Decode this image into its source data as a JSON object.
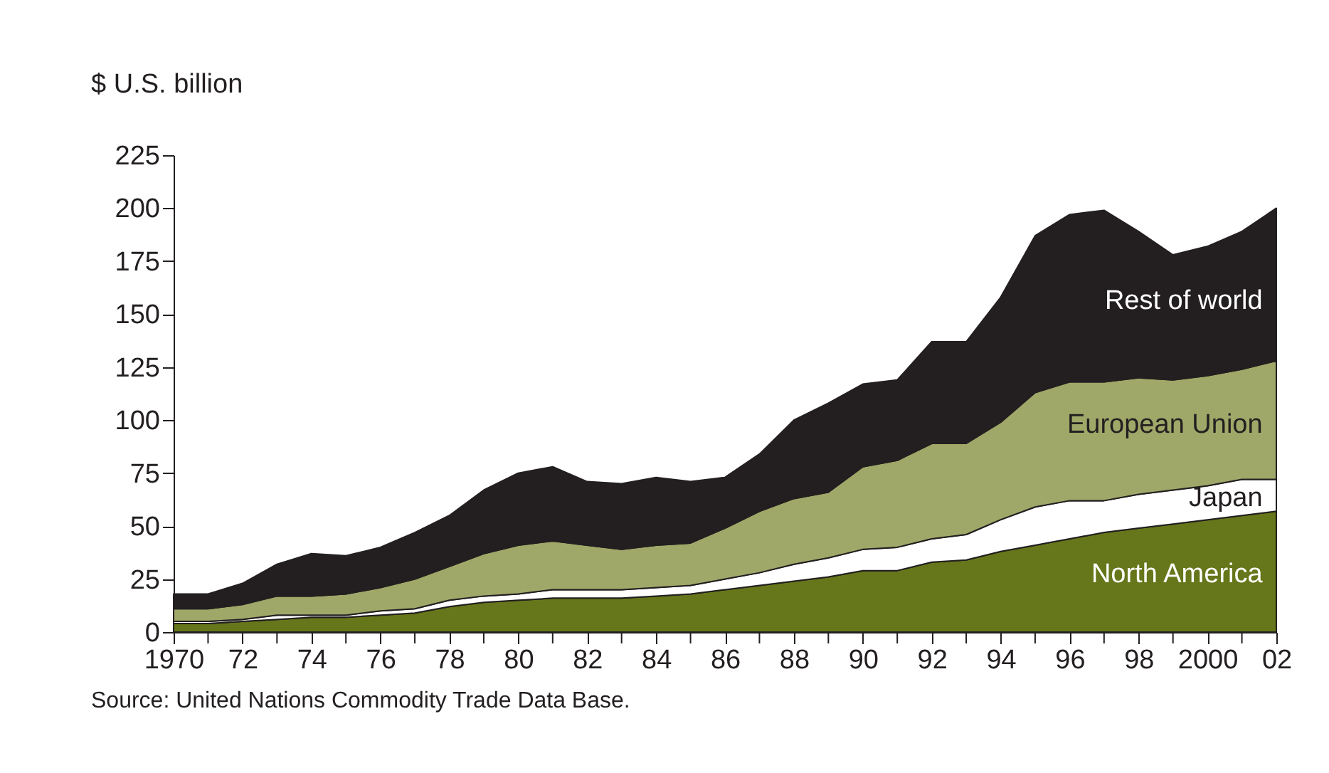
{
  "chart_data": {
    "type": "area",
    "stacked": true,
    "ylabel": "$ U.S. billion",
    "x": [
      1970,
      1971,
      1972,
      1973,
      1974,
      1975,
      1976,
      1977,
      1978,
      1979,
      1980,
      1981,
      1982,
      1983,
      1984,
      1985,
      1986,
      1987,
      1988,
      1989,
      1990,
      1991,
      1992,
      1993,
      1994,
      1995,
      1996,
      1997,
      1998,
      1999,
      2000,
      2001,
      2002
    ],
    "series": [
      {
        "name": "North America",
        "color": "#66761a",
        "values": [
          4,
          4,
          5,
          6,
          7,
          7,
          8,
          9,
          12,
          14,
          15,
          16,
          16,
          16,
          17,
          18,
          20,
          22,
          24,
          26,
          29,
          29,
          33,
          34,
          38,
          41,
          44,
          47,
          49,
          51,
          53,
          55,
          57
        ]
      },
      {
        "name": "Japan",
        "color": "#ffffff",
        "values": [
          1,
          1,
          1,
          2,
          1,
          1,
          2,
          2,
          3,
          3,
          3,
          4,
          4,
          4,
          4,
          4,
          5,
          6,
          8,
          9,
          10,
          11,
          11,
          12,
          15,
          18,
          18,
          15,
          16,
          16,
          16,
          17,
          15
        ]
      },
      {
        "name": "European Union",
        "color": "#9fa868",
        "values": [
          6,
          6,
          7,
          9,
          9,
          10,
          11,
          14,
          16,
          20,
          23,
          23,
          21,
          19,
          20,
          20,
          24,
          29,
          31,
          31,
          39,
          41,
          45,
          43,
          46,
          54,
          56,
          56,
          55,
          52,
          52,
          52,
          56
        ]
      },
      {
        "name": "Rest of world",
        "color": "#231f20",
        "values": [
          7,
          7,
          10,
          15,
          20,
          18,
          19,
          22,
          24,
          30,
          34,
          35,
          30,
          31,
          32,
          29,
          24,
          27,
          37,
          42,
          39,
          38,
          48,
          48,
          59,
          74,
          79,
          81,
          69,
          59,
          61,
          65,
          72
        ]
      }
    ],
    "xlim": [
      1970,
      2002
    ],
    "xticks": [
      1970,
      {
        "value": 1971,
        "label": null
      },
      {
        "value": 1972,
        "label": "72"
      },
      {
        "value": 1973,
        "label": null
      },
      {
        "value": 1974,
        "label": "74"
      },
      {
        "value": 1975,
        "label": null
      },
      {
        "value": 1976,
        "label": "76"
      },
      {
        "value": 1977,
        "label": null
      },
      {
        "value": 1978,
        "label": "78"
      },
      {
        "value": 1979,
        "label": null
      },
      {
        "value": 1980,
        "label": "80"
      },
      {
        "value": 1981,
        "label": null
      },
      {
        "value": 1982,
        "label": "82"
      },
      {
        "value": 1983,
        "label": null
      },
      {
        "value": 1984,
        "label": "84"
      },
      {
        "value": 1985,
        "label": null
      },
      {
        "value": 1986,
        "label": "86"
      },
      {
        "value": 1987,
        "label": null
      },
      {
        "value": 1988,
        "label": "88"
      },
      {
        "value": 1989,
        "label": null
      },
      {
        "value": 1990,
        "label": "90"
      },
      {
        "value": 1991,
        "label": null
      },
      {
        "value": 1992,
        "label": "92"
      },
      {
        "value": 1993,
        "label": null
      },
      {
        "value": 1994,
        "label": "94"
      },
      {
        "value": 1995,
        "label": null
      },
      {
        "value": 1996,
        "label": "96"
      },
      {
        "value": 1997,
        "label": null
      },
      {
        "value": 1998,
        "label": "98"
      },
      {
        "value": 1999,
        "label": null
      },
      {
        "value": 2000,
        "label": "2000"
      },
      {
        "value": 2001,
        "label": null
      },
      {
        "value": 2002,
        "label": "02"
      }
    ],
    "ylim": [
      0,
      225
    ],
    "yticks": [
      0,
      25,
      50,
      75,
      100,
      125,
      150,
      175,
      200,
      225
    ],
    "grid": false,
    "legend": false,
    "annotations": [
      "Source: United Nations Commodity Trade Data Base."
    ]
  }
}
